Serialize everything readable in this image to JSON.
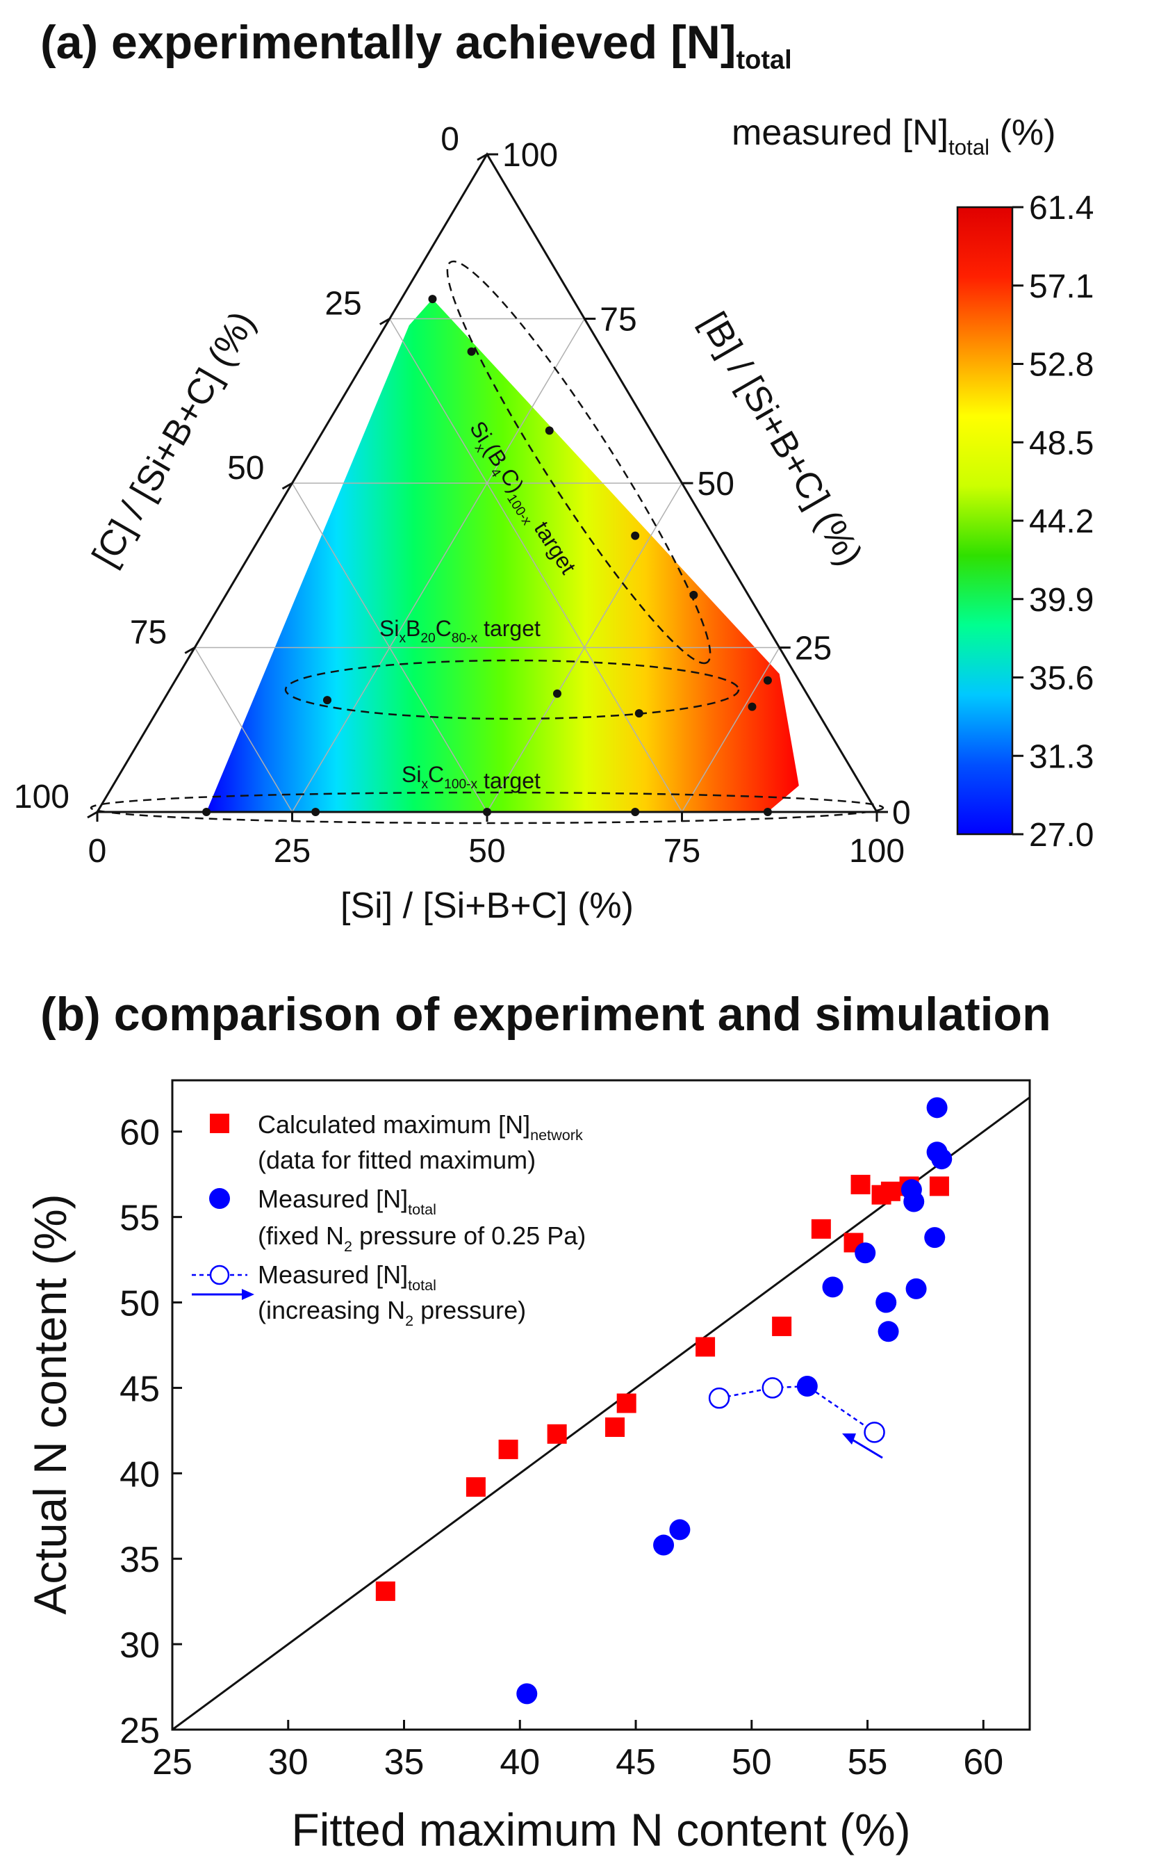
{
  "panel_a": {
    "title": "(a) experimentally achieved [N]",
    "title_sub": "total",
    "colorbar": {
      "label": "measured [N]",
      "label_sub": "total",
      "label_suffix": " (%)",
      "ticks": [
        "61.4",
        "57.1",
        "52.8",
        "48.5",
        "44.2",
        "39.9",
        "35.6",
        "31.3",
        "27.0"
      ],
      "min": 27.0,
      "max": 61.4,
      "colors": [
        "#0000ff",
        "#0050ff",
        "#00c8ff",
        "#00ff90",
        "#30e000",
        "#ccff00",
        "#ffff00",
        "#ff9000",
        "#ff2000",
        "#e00000"
      ]
    },
    "axes": {
      "bottom_label": "[Si] / [Si+B+C] (%)",
      "left_label": "[C] / [Si+B+C] (%)",
      "right_label": "[B] / [Si+B+C] (%)",
      "bottom_ticks": [
        "0",
        "25",
        "50",
        "75",
        "100"
      ],
      "left_ticks": [
        "0",
        "25",
        "50",
        "75",
        "100"
      ],
      "right_ticks": [
        "100",
        "75",
        "50",
        "25",
        "0"
      ]
    },
    "targets": [
      {
        "name": "Si",
        "name_sub": "x",
        "name_mid": "(B",
        "name_sub2": "4",
        "name_mid2": "C)",
        "name_sub3": "100-x",
        "name_end": " target"
      },
      {
        "name": "Si",
        "name_sub": "x",
        "name_mid": "B",
        "name_sub2": "20",
        "name_mid2": "C",
        "name_sub3": "80-x",
        "name_end": " target"
      },
      {
        "name": "Si",
        "name_sub": "x",
        "name_mid": "C",
        "name_sub2": "100-x",
        "name_mid2": "",
        "name_sub3": "",
        "name_end": " target"
      }
    ],
    "compositions": [
      {
        "si": 14,
        "b": 0,
        "c": 86
      },
      {
        "si": 28,
        "b": 0,
        "c": 72
      },
      {
        "si": 50,
        "b": 0,
        "c": 50
      },
      {
        "si": 69,
        "b": 0,
        "c": 31
      },
      {
        "si": 86,
        "b": 0,
        "c": 14
      },
      {
        "si": 21,
        "b": 17,
        "c": 62
      },
      {
        "si": 50,
        "b": 18,
        "c": 32
      },
      {
        "si": 62,
        "b": 15,
        "c": 23
      },
      {
        "si": 76,
        "b": 16,
        "c": 8
      },
      {
        "si": 76,
        "b": 20,
        "c": 4
      },
      {
        "si": 4,
        "b": 78,
        "c": 18
      },
      {
        "si": 13,
        "b": 70,
        "c": 17
      },
      {
        "si": 29,
        "b": 58,
        "c": 13
      },
      {
        "si": 48,
        "b": 42,
        "c": 10
      },
      {
        "si": 60,
        "b": 33,
        "c": 7
      }
    ]
  },
  "panel_b": {
    "title": "(b) comparison of experiment and simulation",
    "legend": [
      {
        "marker": "red-square",
        "line1": "Calculated maximum [N]",
        "line1_sub": "network",
        "line2": "(data for fitted maximum)"
      },
      {
        "marker": "blue-circle",
        "line1": "Measured [N]",
        "line1_sub": "total",
        "line2a": "(fixed N",
        "line2_sub": "2",
        "line2b": " pressure of 0.25 Pa)"
      },
      {
        "marker": "open-circle-arrow",
        "line1": "Measured [N]",
        "line1_sub": "total",
        "line2a": "(increasing N",
        "line2_sub": "2",
        "line2b": " pressure)"
      }
    ]
  },
  "chart_data": {
    "type": "scatter",
    "xlabel": "Fitted maximum N content (%)",
    "ylabel": "Actual N content (%)",
    "xlim": [
      25,
      62
    ],
    "ylim": [
      25,
      63
    ],
    "xticks": [
      25,
      30,
      35,
      40,
      45,
      50,
      55,
      60
    ],
    "yticks": [
      25,
      30,
      35,
      40,
      45,
      50,
      55,
      60
    ],
    "reference_line": {
      "x": [
        25,
        62
      ],
      "y": [
        25,
        62
      ]
    },
    "series": [
      {
        "name": "Calculated maximum [N]network",
        "color": "#ff0000",
        "marker": "square",
        "points": [
          [
            34.2,
            33.1
          ],
          [
            38.1,
            39.2
          ],
          [
            39.5,
            41.4
          ],
          [
            41.6,
            42.3
          ],
          [
            44.1,
            42.7
          ],
          [
            44.6,
            44.1
          ],
          [
            48.0,
            47.4
          ],
          [
            51.3,
            48.6
          ],
          [
            53.0,
            54.3
          ],
          [
            54.4,
            53.5
          ],
          [
            54.7,
            56.9
          ],
          [
            55.6,
            56.3
          ],
          [
            56.0,
            56.5
          ],
          [
            56.8,
            56.8
          ],
          [
            58.1,
            56.8
          ]
        ]
      },
      {
        "name": "Measured [N]total (fixed N2 pressure of 0.25 Pa)",
        "color": "#0000ff",
        "marker": "filled-circle",
        "points": [
          [
            40.3,
            27.1
          ],
          [
            46.2,
            35.8
          ],
          [
            46.9,
            36.7
          ],
          [
            53.5,
            50.9
          ],
          [
            54.9,
            52.9
          ],
          [
            55.8,
            50.0
          ],
          [
            55.9,
            48.3
          ],
          [
            56.9,
            56.6
          ],
          [
            57.0,
            55.9
          ],
          [
            57.1,
            50.8
          ],
          [
            57.9,
            53.8
          ],
          [
            58.0,
            61.4
          ],
          [
            58.0,
            58.8
          ],
          [
            58.2,
            58.4
          ]
        ]
      },
      {
        "name": "Measured [N]total (increasing N2 pressure)",
        "color": "#0000ff",
        "marker": "open-circle-dashed",
        "points": [
          [
            48.6,
            44.4
          ],
          [
            50.9,
            45.0
          ],
          [
            52.4,
            45.1
          ],
          [
            55.3,
            42.4
          ]
        ]
      }
    ]
  }
}
